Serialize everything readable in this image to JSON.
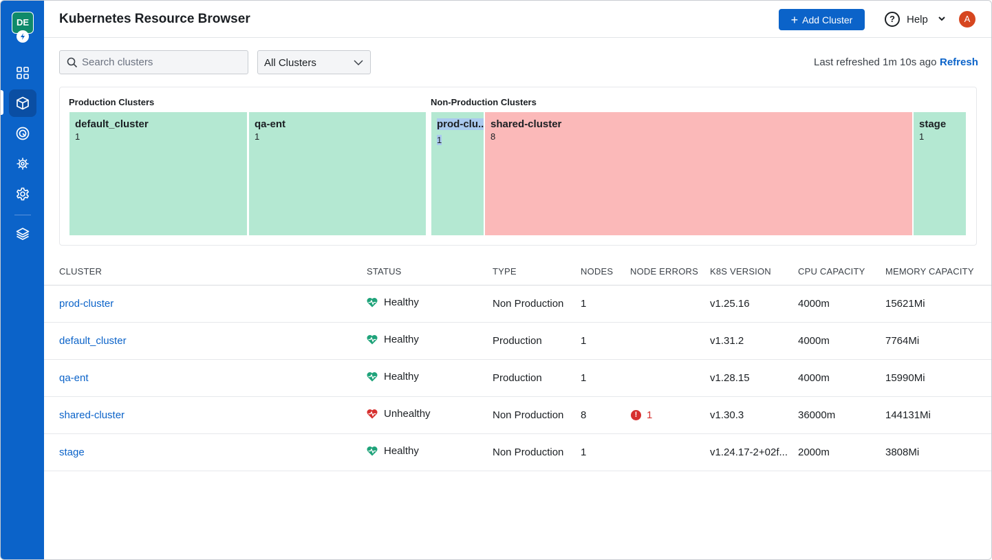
{
  "sidebar": {
    "logo_text": "DE",
    "items": [
      {
        "icon": "dashboard-grid-icon"
      },
      {
        "icon": "cube-icon",
        "active": true
      },
      {
        "icon": "target-icon"
      },
      {
        "icon": "bug-icon"
      },
      {
        "icon": "gear-icon"
      },
      {
        "icon": "layers-icon"
      }
    ]
  },
  "header": {
    "title": "Kubernetes Resource Browser",
    "add_label": "Add Cluster",
    "help_label": "Help",
    "avatar_initial": "A"
  },
  "toolbar": {
    "search_placeholder": "Search clusters",
    "filter_value": "All Clusters",
    "last_refreshed": "Last refreshed 1m 10s ago",
    "refresh_label": "Refresh"
  },
  "treemap": {
    "production_title": "Production Clusters",
    "nonproduction_title": "Non-Production Clusters",
    "production": [
      {
        "name": "default_cluster",
        "count": "1",
        "status": "healthy"
      },
      {
        "name": "qa-ent",
        "count": "1",
        "status": "healthy"
      }
    ],
    "nonproduction": [
      {
        "name": "prod-clu...",
        "count": "1",
        "status": "healthy"
      },
      {
        "name": "shared-cluster",
        "count": "8",
        "status": "unhealthy"
      },
      {
        "name": "stage",
        "count": "1",
        "status": "healthy"
      }
    ]
  },
  "table": {
    "headers": {
      "cluster": "CLUSTER",
      "status": "STATUS",
      "type": "TYPE",
      "nodes": "NODES",
      "node_errors": "NODE ERRORS",
      "k8s_version": "K8S VERSION",
      "cpu": "CPU CAPACITY",
      "memory": "MEMORY CAPACITY"
    },
    "rows": [
      {
        "cluster": "prod-cluster",
        "status": "Healthy",
        "type": "Non Production",
        "nodes": "1",
        "node_errors": "",
        "k8s_version": "v1.25.16",
        "cpu": "4000m",
        "memory": "15621Mi"
      },
      {
        "cluster": "default_cluster",
        "status": "Healthy",
        "type": "Production",
        "nodes": "1",
        "node_errors": "",
        "k8s_version": "v1.31.2",
        "cpu": "4000m",
        "memory": "7764Mi"
      },
      {
        "cluster": "qa-ent",
        "status": "Healthy",
        "type": "Production",
        "nodes": "1",
        "node_errors": "",
        "k8s_version": "v1.28.15",
        "cpu": "4000m",
        "memory": "15990Mi"
      },
      {
        "cluster": "shared-cluster",
        "status": "Unhealthy",
        "type": "Non Production",
        "nodes": "8",
        "node_errors": "1",
        "k8s_version": "v1.30.3",
        "cpu": "36000m",
        "memory": "144131Mi"
      },
      {
        "cluster": "stage",
        "status": "Healthy",
        "type": "Non Production",
        "nodes": "1",
        "node_errors": "",
        "k8s_version": "v1.24.17-2+02f...",
        "cpu": "2000m",
        "memory": "3808Mi"
      }
    ]
  },
  "colors": {
    "brand": "#0b63c9",
    "healthy": "#1fa37a",
    "unhealthy": "#d6302f",
    "tile_healthy": "#b4e8d2",
    "tile_unhealthy": "#fbb9b9"
  }
}
